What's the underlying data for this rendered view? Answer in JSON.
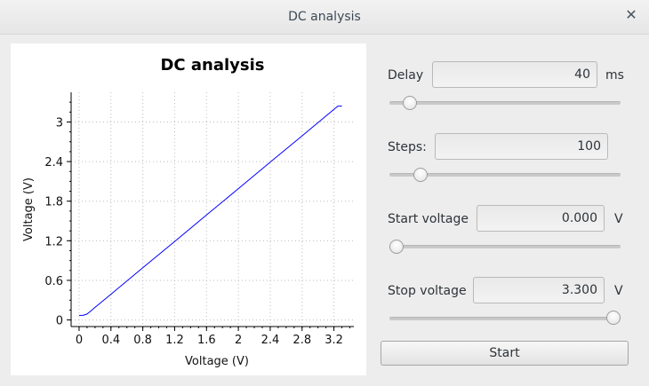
{
  "window": {
    "title": "DC analysis",
    "close_icon": "close-icon"
  },
  "controls": {
    "delay": {
      "label": "Delay",
      "value": "40",
      "unit": "ms",
      "slider_fraction": 0.06
    },
    "steps": {
      "label": "Steps:",
      "value": "100",
      "slider_fraction": 0.11
    },
    "start_voltage": {
      "label": "Start voltage",
      "value": "0.000",
      "unit": "V",
      "slider_fraction": 0.0
    },
    "stop_voltage": {
      "label": "Stop voltage",
      "value": "3.300",
      "unit": "V",
      "slider_fraction": 1.0
    },
    "start_button": "Start"
  },
  "chart_data": {
    "type": "line",
    "title": "DC analysis",
    "xlabel": "Voltage (V)",
    "ylabel": "Voltage (V)",
    "xlim": [
      -0.1,
      3.45
    ],
    "ylim": [
      -0.1,
      3.45
    ],
    "xticks": [
      "0",
      "0.4",
      "0.8",
      "1.2",
      "1.6",
      "2",
      "2.4",
      "2.8",
      "3.2"
    ],
    "yticks": [
      "0",
      "0.6",
      "1.2",
      "1.8",
      "2.4",
      "3"
    ],
    "grid": true,
    "line_color": "#0000ff",
    "series": [
      {
        "x": [
          0,
          0.05,
          0.1,
          0.15,
          0.2,
          0.4,
          0.8,
          1.2,
          1.6,
          2.0,
          2.4,
          2.8,
          3.1,
          3.2,
          3.25,
          3.3
        ],
        "y": [
          0.07,
          0.07,
          0.09,
          0.14,
          0.19,
          0.39,
          0.79,
          1.19,
          1.59,
          1.99,
          2.39,
          2.79,
          3.09,
          3.19,
          3.24,
          3.24
        ]
      }
    ]
  }
}
